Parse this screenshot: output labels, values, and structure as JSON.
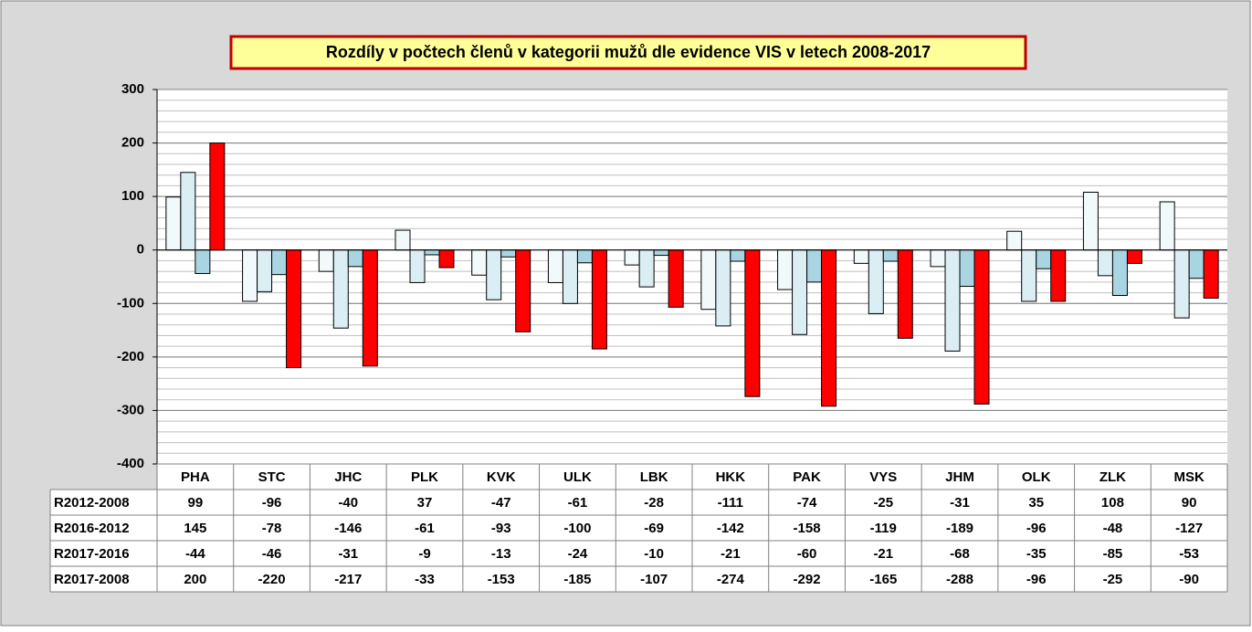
{
  "chart_data": {
    "type": "bar",
    "title": "Rozdíly v počtech členů v kategorii mužů dle evidence VIS v letech 2008-2017",
    "categories": [
      "PHA",
      "STC",
      "JHC",
      "PLK",
      "KVK",
      "ULK",
      "LBK",
      "HKK",
      "PAK",
      "VYS",
      "JHM",
      "OLK",
      "ZLK",
      "MSK"
    ],
    "series": [
      {
        "name": "R2012-2008",
        "color": "#f2f9fb",
        "values": [
          99,
          -96,
          -40,
          37,
          -47,
          -61,
          -28,
          -111,
          -74,
          -25,
          -31,
          35,
          108,
          90
        ]
      },
      {
        "name": "R2016-2012",
        "color": "#daeef3",
        "values": [
          145,
          -78,
          -146,
          -61,
          -93,
          -100,
          -69,
          -142,
          -158,
          -119,
          -189,
          -96,
          -48,
          -127
        ]
      },
      {
        "name": "R2017-2016",
        "color": "#a9d5e2",
        "values": [
          -44,
          -46,
          -31,
          -9,
          -13,
          -24,
          -10,
          -21,
          -60,
          -21,
          -68,
          -35,
          -85,
          -53
        ]
      },
      {
        "name": "R2017-2008",
        "color": "#ff0000",
        "values": [
          200,
          -220,
          -217,
          -33,
          -153,
          -185,
          -107,
          -274,
          -292,
          -165,
          -288,
          -96,
          -25,
          -90
        ]
      }
    ],
    "ylim": [
      -400,
      300
    ],
    "yticks": [
      -400,
      -300,
      -200,
      -100,
      0,
      100,
      200,
      300
    ],
    "grid": true,
    "minor_grid_step": 20
  }
}
